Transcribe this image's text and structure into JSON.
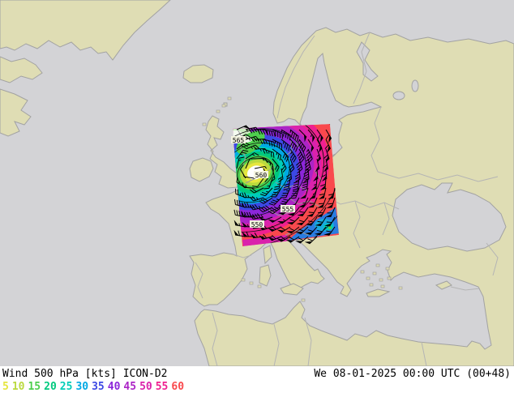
{
  "footer": {
    "product_label": "Wind 500 hPa [kts] ICON-D2",
    "datetime_label": "We 08-01-2025 00:00 UTC (00+48)"
  },
  "legend": {
    "unit": "kts",
    "values": [
      {
        "label": "5",
        "color": "#e6e63e"
      },
      {
        "label": "10",
        "color": "#bada3e"
      },
      {
        "label": "15",
        "color": "#4ecf4e"
      },
      {
        "label": "20",
        "color": "#00c97e"
      },
      {
        "label": "25",
        "color": "#00cdb8"
      },
      {
        "label": "30",
        "color": "#00a9e4"
      },
      {
        "label": "35",
        "color": "#3c48e4"
      },
      {
        "label": "40",
        "color": "#8c26da"
      },
      {
        "label": "45",
        "color": "#ab24c6"
      },
      {
        "label": "50",
        "color": "#da22ac"
      },
      {
        "label": "55",
        "color": "#ef2090"
      },
      {
        "label": "60",
        "color": "#f9494d"
      }
    ]
  },
  "map": {
    "sea_color": "#d3d3d6",
    "land_color": "#dfddb4",
    "coast_color": "#a2a2a2",
    "border_color": "#b4b4b4",
    "calm_color": "#ffffff"
  },
  "domain_overlay": {
    "model": "ICON-D2",
    "contour_labels": [
      {
        "text": "565"
      },
      {
        "text": "560"
      },
      {
        "text": "555"
      },
      {
        "text": "550"
      }
    ]
  }
}
